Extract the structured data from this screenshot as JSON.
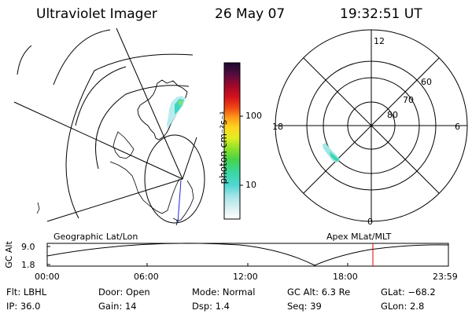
{
  "header": {
    "instrument": "Ultraviolet Imager",
    "date": "26 May 07",
    "time": "19:32:51 UT"
  },
  "colorbar": {
    "label": "photon cm⁻²s⁻¹",
    "ticks": [
      "100",
      "10"
    ]
  },
  "polar_plot": {
    "mlt_labels": [
      "12",
      "18",
      "6",
      "0"
    ],
    "lat_labels": [
      "60",
      "70",
      "80"
    ]
  },
  "map_labels": {
    "left": "Geographic Lat/Lon",
    "right": "Apex MLat/MLT"
  },
  "timeline": {
    "ylabel": "GC Alt",
    "y_ticks": [
      "9.0",
      "1.8"
    ],
    "x_ticks": [
      "00:00",
      "06:00",
      "12:00",
      "18:00",
      "23:59"
    ],
    "marker_color": "#e00000"
  },
  "status": {
    "row1": [
      {
        "key": "Flt:",
        "value": "LBHL"
      },
      {
        "key": "Door:",
        "value": "Open"
      },
      {
        "key": "Mode:",
        "value": "Normal"
      },
      {
        "key": "GC Alt:",
        "value": "6.3 Re"
      },
      {
        "key": "GLat:",
        "value": "−68.2"
      }
    ],
    "row2": [
      {
        "key": "IP:",
        "value": "36.0"
      },
      {
        "key": "Gain:",
        "value": "14"
      },
      {
        "key": "Dsp:",
        "value": "1.4"
      },
      {
        "key": "Seq:",
        "value": "39"
      },
      {
        "key": "GLon:",
        "value": "2.8"
      }
    ]
  }
}
